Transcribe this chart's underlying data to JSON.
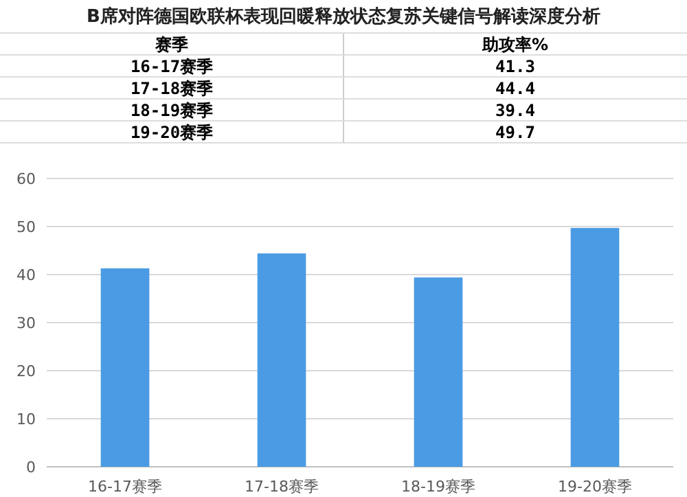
{
  "chart_data": [
    {
      "type": "other",
      "title": "B席对阵德国欧联杯表现回暖释放状态复苏关键信号解读深度分析",
      "annotations": [
        "赛季",
        "助攻率%"
      ],
      "categories": [
        "16-17赛季",
        "17-18赛季",
        "18-19赛季",
        "19-20赛季"
      ],
      "values": [
        41.3,
        44.4,
        39.4,
        49.7
      ],
      "data_labels": true
    },
    {
      "type": "bar",
      "categories": [
        "16-17赛季",
        "17-18赛季",
        "18-19赛季",
        "19-20赛季"
      ],
      "values": [
        41.3,
        44.4,
        39.4,
        49.7
      ],
      "color": "#4a9be3",
      "ylim": [
        0,
        60
      ],
      "yticks": [
        0,
        10,
        20,
        30,
        40,
        50,
        60
      ],
      "grid": "y"
    }
  ]
}
